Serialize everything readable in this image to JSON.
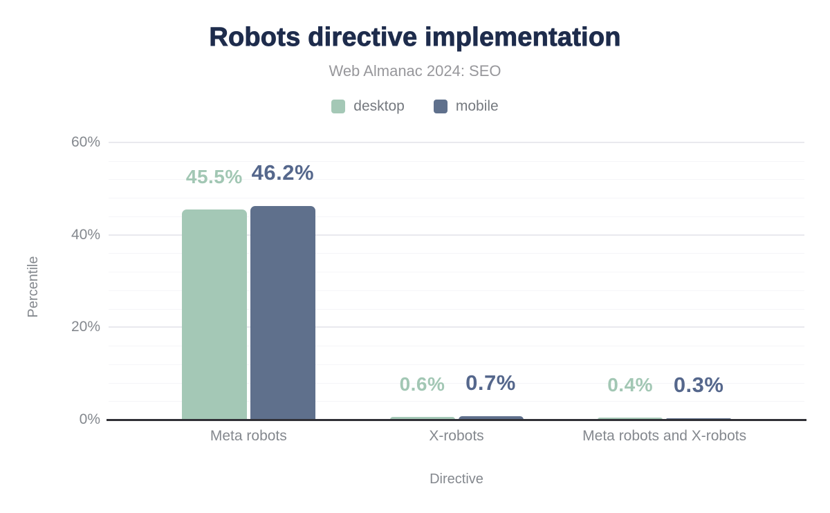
{
  "chart_data": {
    "type": "bar",
    "title": "Robots directive implementation",
    "subtitle": "Web Almanac 2024: SEO",
    "xlabel": "Directive",
    "ylabel": "Percentile",
    "categories": [
      "Meta robots",
      "X-robots",
      "Meta robots and X-robots"
    ],
    "series": [
      {
        "name": "desktop",
        "color": "#a4c8b6",
        "label_color": "#a2c7b4",
        "values": [
          45.5,
          0.6,
          0.4
        ],
        "value_labels": [
          "45.5%",
          "0.6%",
          "0.4%"
        ]
      },
      {
        "name": "mobile",
        "color": "#5f708c",
        "label_color": "#55678c",
        "values": [
          46.2,
          0.7,
          0.3
        ],
        "value_labels": [
          "46.2%",
          "0.7%",
          "0.3%"
        ]
      }
    ],
    "ylim": [
      0,
      60
    ],
    "yticks": [
      0,
      20,
      40,
      60
    ],
    "ytick_labels": [
      "0%",
      "20%",
      "40%",
      "60%"
    ],
    "minor_grid_step": 4,
    "grid": true,
    "legend_position": "top",
    "colors": {
      "title": "#1e2c4c",
      "subtitle": "#97979b",
      "axis_text": "#84888e",
      "zero_line": "#303036"
    }
  }
}
